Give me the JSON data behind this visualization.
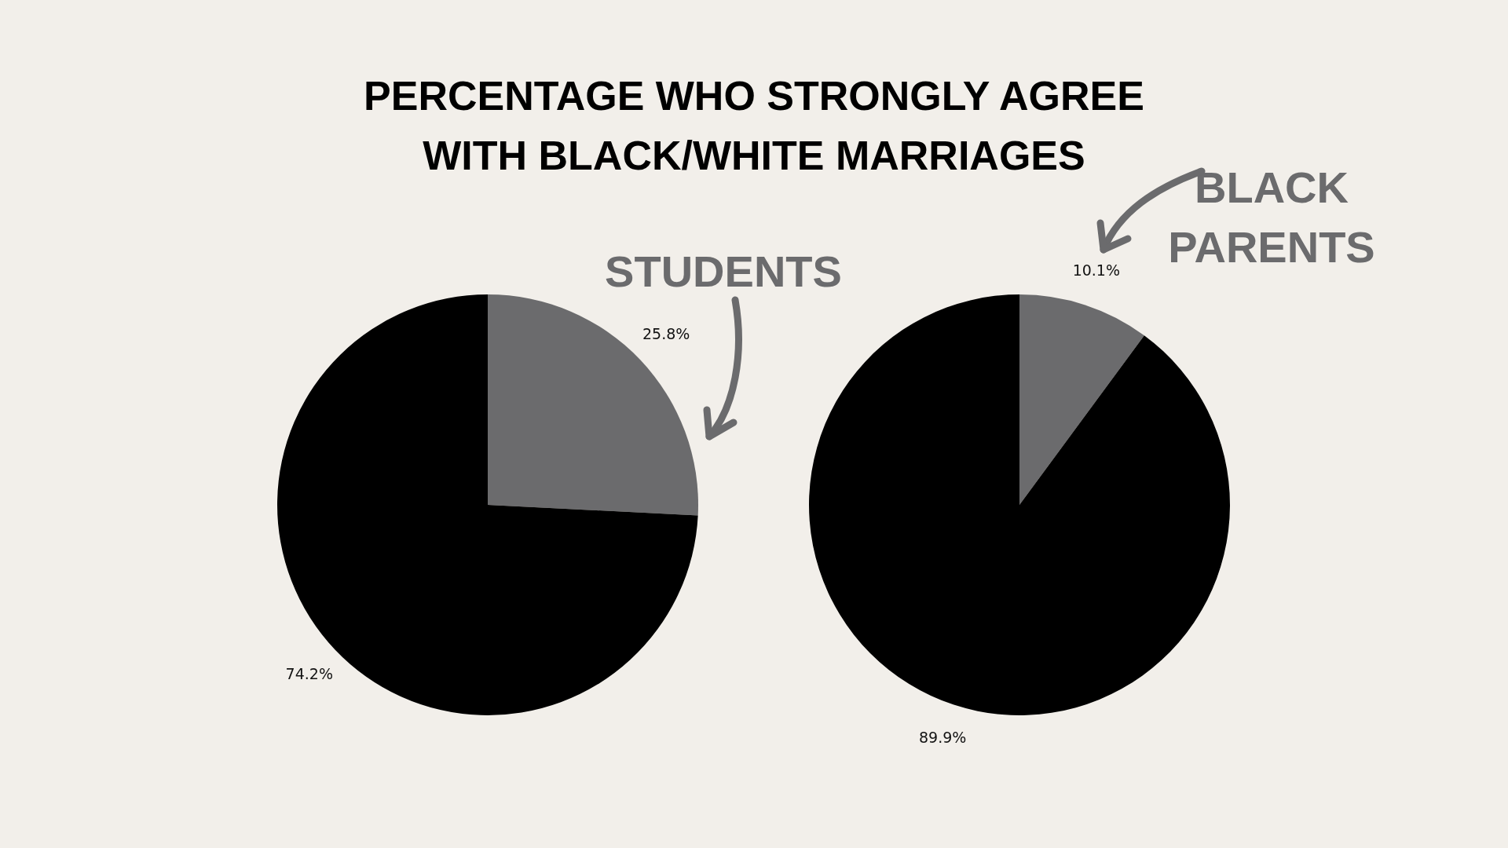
{
  "chart_data": [
    {
      "type": "pie",
      "title": "PERCENTAGE WHO STRONGLY AGREE WITH BLACK/WHITE MARRIAGES",
      "categories": [
        null,
        null
      ],
      "values": [
        25.8,
        74.2
      ],
      "colors": [
        "#6b6b6d",
        "#000000"
      ],
      "value_labels": [
        "25.8%",
        "74.2%"
      ],
      "annotations": [
        "STUDENTS"
      ]
    },
    {
      "type": "pie",
      "categories": [
        null,
        null
      ],
      "values": [
        10.1,
        89.9
      ],
      "colors": [
        "#6b6b6d",
        "#000000"
      ],
      "value_labels": [
        "10.1%",
        "89.9%"
      ],
      "annotations": [
        "BLACK PARENTS"
      ]
    }
  ]
}
